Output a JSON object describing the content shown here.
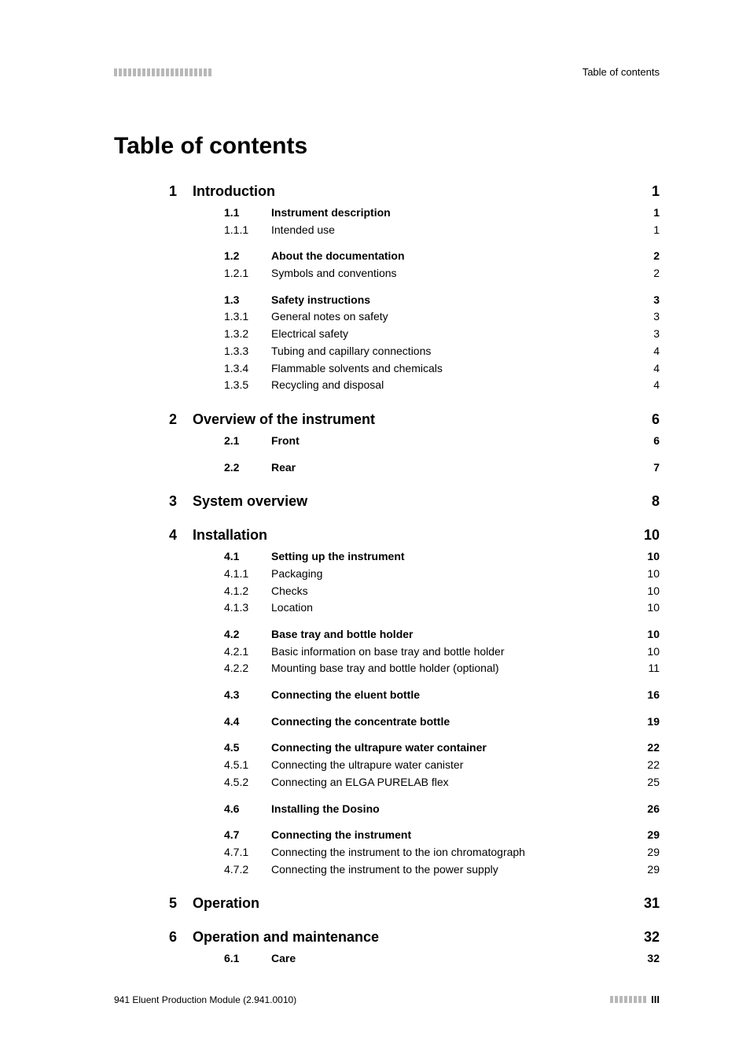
{
  "header": {
    "title_right": "Table of contents"
  },
  "title": "Table of contents",
  "toc": [
    {
      "num": "1",
      "title": "Introduction",
      "page": "1",
      "groups": [
        {
          "gap": false,
          "rows": [
            {
              "num": "1.1",
              "title": "Instrument description",
              "page": "1",
              "bold": true
            },
            {
              "num": "1.1.1",
              "title": "Intended use",
              "page": "1",
              "bold": false
            }
          ]
        },
        {
          "gap": true,
          "rows": [
            {
              "num": "1.2",
              "title": "About the documentation",
              "page": "2",
              "bold": true
            },
            {
              "num": "1.2.1",
              "title": "Symbols and conventions",
              "page": "2",
              "bold": false
            }
          ]
        },
        {
          "gap": true,
          "rows": [
            {
              "num": "1.3",
              "title": "Safety instructions",
              "page": "3",
              "bold": true
            },
            {
              "num": "1.3.1",
              "title": "General notes on safety",
              "page": "3",
              "bold": false
            },
            {
              "num": "1.3.2",
              "title": "Electrical safety",
              "page": "3",
              "bold": false
            },
            {
              "num": "1.3.3",
              "title": "Tubing and capillary connections",
              "page": "4",
              "bold": false
            },
            {
              "num": "1.3.4",
              "title": "Flammable solvents and chemicals",
              "page": "4",
              "bold": false
            },
            {
              "num": "1.3.5",
              "title": "Recycling and disposal",
              "page": "4",
              "bold": false
            }
          ]
        }
      ]
    },
    {
      "num": "2",
      "title": "Overview of the instrument",
      "page": "6",
      "groups": [
        {
          "gap": false,
          "rows": [
            {
              "num": "2.1",
              "title": "Front",
              "page": "6",
              "bold": true
            }
          ]
        },
        {
          "gap": true,
          "rows": [
            {
              "num": "2.2",
              "title": "Rear",
              "page": "7",
              "bold": true
            }
          ]
        }
      ]
    },
    {
      "num": "3",
      "title": "System overview",
      "page": "8",
      "groups": []
    },
    {
      "num": "4",
      "title": "Installation",
      "page": "10",
      "groups": [
        {
          "gap": false,
          "rows": [
            {
              "num": "4.1",
              "title": "Setting up the instrument",
              "page": "10",
              "bold": true
            },
            {
              "num": "4.1.1",
              "title": "Packaging",
              "page": "10",
              "bold": false
            },
            {
              "num": "4.1.2",
              "title": "Checks",
              "page": "10",
              "bold": false
            },
            {
              "num": "4.1.3",
              "title": "Location",
              "page": "10",
              "bold": false
            }
          ]
        },
        {
          "gap": true,
          "rows": [
            {
              "num": "4.2",
              "title": "Base tray and bottle holder",
              "page": "10",
              "bold": true
            },
            {
              "num": "4.2.1",
              "title": "Basic information on base tray and bottle holder",
              "page": "10",
              "bold": false
            },
            {
              "num": "4.2.2",
              "title": "Mounting base tray and bottle holder (optional)",
              "page": "11",
              "bold": false
            }
          ]
        },
        {
          "gap": true,
          "rows": [
            {
              "num": "4.3",
              "title": "Connecting the eluent bottle",
              "page": "16",
              "bold": true
            }
          ]
        },
        {
          "gap": true,
          "rows": [
            {
              "num": "4.4",
              "title": "Connecting the concentrate bottle",
              "page": "19",
              "bold": true
            }
          ]
        },
        {
          "gap": true,
          "rows": [
            {
              "num": "4.5",
              "title": "Connecting the ultrapure water container",
              "page": "22",
              "bold": true
            },
            {
              "num": "4.5.1",
              "title": "Connecting the ultrapure water canister",
              "page": "22",
              "bold": false
            },
            {
              "num": "4.5.2",
              "title": "Connecting an ELGA PURELAB flex",
              "page": "25",
              "bold": false
            }
          ]
        },
        {
          "gap": true,
          "rows": [
            {
              "num": "4.6",
              "title": "Installing the Dosino",
              "page": "26",
              "bold": true
            }
          ]
        },
        {
          "gap": true,
          "rows": [
            {
              "num": "4.7",
              "title": "Connecting the instrument",
              "page": "29",
              "bold": true
            },
            {
              "num": "4.7.1",
              "title": "Connecting the instrument to the ion chromatograph",
              "page": "29",
              "bold": false
            },
            {
              "num": "4.7.2",
              "title": "Connecting the instrument to the power supply",
              "page": "29",
              "bold": false
            }
          ]
        }
      ]
    },
    {
      "num": "5",
      "title": "Operation",
      "page": "31",
      "groups": []
    },
    {
      "num": "6",
      "title": "Operation and maintenance",
      "page": "32",
      "groups": [
        {
          "gap": false,
          "rows": [
            {
              "num": "6.1",
              "title": "Care",
              "page": "32",
              "bold": true
            }
          ]
        }
      ]
    }
  ],
  "footer": {
    "left": "941 Eluent Production Module (2.941.0010)",
    "page": "III"
  },
  "style": {
    "page_bg": "#ffffff",
    "text_color": "#000000",
    "square_color": "#b8b8b8",
    "title_fontsize": 30,
    "chapter_fontsize": 18,
    "section_fontsize": 14,
    "footer_fontsize": 12
  }
}
